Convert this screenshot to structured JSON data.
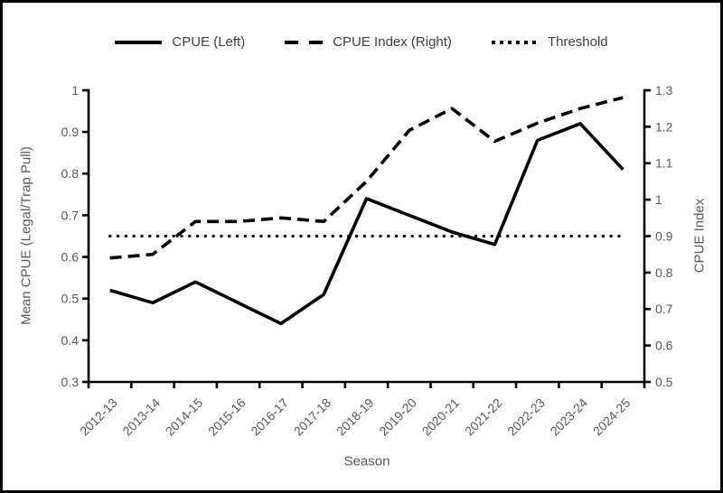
{
  "figure": {
    "background": "#ffffff",
    "border_color": "#000000",
    "line_color": "#000000",
    "tick_label_color": "#595959",
    "legend_text_color": "#3f3f3f"
  },
  "legend": {
    "items": [
      {
        "label": "CPUE (Left)",
        "style": "solid"
      },
      {
        "label": "CPUE Index (Right)",
        "style": "dashed"
      },
      {
        "label": "Threshold",
        "style": "dotted"
      }
    ]
  },
  "chart_data": {
    "type": "line",
    "title": "",
    "xlabel": "Season",
    "ylabel_left": "Mean CPUE (Legal/Trap Pull)",
    "ylabel_right": "CPUE Index",
    "categories": [
      "2012-13",
      "2013-14",
      "2014-15",
      "2015-16",
      "2016-17",
      "2017-18",
      "2018-19",
      "2019-20",
      "2020-21",
      "2021-22",
      "2022-23",
      "2023-24",
      "2024-25"
    ],
    "series": [
      {
        "name": "CPUE (Left)",
        "axis": "left",
        "line_style": "solid",
        "values": [
          0.52,
          0.49,
          0.54,
          0.49,
          0.44,
          0.51,
          0.74,
          0.7,
          0.66,
          0.63,
          0.88,
          0.92,
          0.81
        ]
      },
      {
        "name": "CPUE Index (Right)",
        "axis": "right",
        "line_style": "dashed",
        "values": [
          0.84,
          0.85,
          0.94,
          0.94,
          0.95,
          0.94,
          1.05,
          1.19,
          1.25,
          1.16,
          1.21,
          1.25,
          1.28
        ]
      },
      {
        "name": "Threshold",
        "axis": "right",
        "line_style": "dotted",
        "values": [
          0.9,
          0.9,
          0.9,
          0.9,
          0.9,
          0.9,
          0.9,
          0.9,
          0.9,
          0.9,
          0.9,
          0.9,
          0.9
        ]
      }
    ],
    "ylim_left": [
      0.3,
      1.0
    ],
    "ylim_right": [
      0.5,
      1.3
    ],
    "yticks_left": [
      0.3,
      0.4,
      0.5,
      0.6,
      0.7,
      0.8,
      0.9,
      1.0
    ],
    "yticks_right": [
      0.5,
      0.6,
      0.7,
      0.8,
      0.9,
      1.0,
      1.1,
      1.2,
      1.3
    ],
    "grid": false,
    "legend_position": "top"
  }
}
